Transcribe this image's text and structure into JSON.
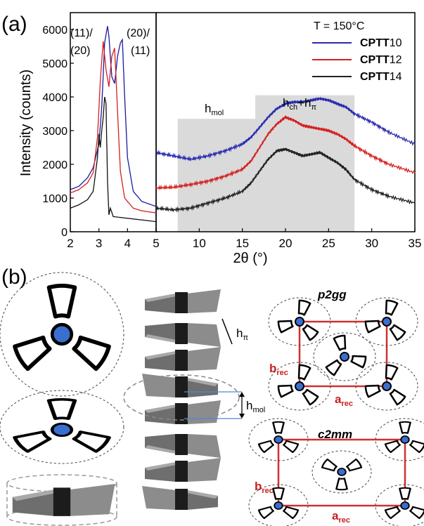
{
  "figure": {
    "panel_a_label": "(a)",
    "panel_b_label": "(b)",
    "temperature_label": "T = 150°C",
    "xlabel_main": "2θ (°)",
    "ylabel": "Intensity (counts)",
    "annotations": {
      "peak_left_line1": "(11)/",
      "peak_left_line2": "(20)",
      "peak_right_line1": "(20)/",
      "peak_right_line2": "(11)",
      "hmol_base": "h",
      "hmol_sub": "mol",
      "hch_base": "h",
      "hch_sub": "ch",
      "hch_plus": "+h",
      "hch_pi": "π",
      "hpi_base": "h",
      "hpi_sub": "π",
      "hmol_b_base": "h",
      "hmol_b_sub": "mol"
    },
    "lattice": {
      "p2gg_label": "p2gg",
      "c2mm_label": "c2mm",
      "b_base": "b",
      "b_sub": "rec",
      "a_base": "a",
      "a_sub": "rec"
    }
  },
  "chart_data": [
    {
      "type": "line",
      "title": "",
      "xlabel": "",
      "ylabel": "Intensity (counts)",
      "xlim": [
        2,
        5
      ],
      "ylim": [
        0,
        6500
      ],
      "x_ticks": [
        2,
        3,
        4,
        5
      ],
      "y_ticks": [
        0,
        1000,
        2000,
        3000,
        4000,
        5000,
        6000
      ],
      "series": [
        {
          "name": "CPTT10",
          "color": "#1a1a9e",
          "x": [
            2.0,
            2.3,
            2.6,
            2.8,
            3.0,
            3.1,
            3.2,
            3.3,
            3.35,
            3.45,
            3.55,
            3.65,
            3.75,
            3.82,
            3.9,
            4.0,
            4.2,
            4.5,
            5.0
          ],
          "y": [
            1250,
            1350,
            1600,
            1900,
            2600,
            3700,
            5600,
            6100,
            5800,
            4600,
            4400,
            5200,
            5600,
            5700,
            4000,
            2200,
            1200,
            900,
            750
          ]
        },
        {
          "name": "CPTT12",
          "color": "#d42020",
          "x": [
            2.0,
            2.3,
            2.6,
            2.8,
            2.95,
            3.05,
            3.15,
            3.25,
            3.35,
            3.45,
            3.55,
            3.65,
            3.75,
            3.9,
            4.2,
            4.5,
            5.0
          ],
          "y": [
            1150,
            1250,
            1450,
            1750,
            2800,
            4500,
            5650,
            4800,
            4300,
            5200,
            5450,
            3600,
            1800,
            1000,
            700,
            620,
            560
          ]
        },
        {
          "name": "CPTT14",
          "color": "#111111",
          "x": [
            2.0,
            2.3,
            2.6,
            2.8,
            2.95,
            3.0,
            3.05,
            3.1,
            3.15,
            3.2,
            3.25,
            3.3,
            3.35,
            3.4,
            3.5,
            4.0,
            4.5,
            5.0
          ],
          "y": [
            700,
            800,
            950,
            1200,
            2200,
            2900,
            2500,
            3000,
            3400,
            4000,
            3800,
            1500,
            500,
            700,
            450,
            400,
            350,
            300
          ]
        }
      ]
    },
    {
      "type": "line",
      "title": "",
      "xlabel": "2θ (°)",
      "ylabel": "",
      "xlim": [
        5,
        35
      ],
      "ylim": [
        0,
        6500
      ],
      "x_ticks": [
        5,
        10,
        15,
        20,
        25,
        30,
        35
      ],
      "shaded_regions": [
        {
          "label": "hmol",
          "x": [
            7.5,
            16.5
          ],
          "y_top": 3350
        },
        {
          "label": "hch+hπ",
          "x": [
            16.5,
            28
          ],
          "y_top": 4050
        }
      ],
      "series": [
        {
          "name": "CPTT10",
          "color": "#2a2ab0",
          "x": [
            5,
            7,
            9,
            11,
            13,
            15,
            16,
            17,
            18,
            19,
            20,
            21,
            22,
            23,
            24,
            25,
            26,
            27,
            28,
            30,
            32,
            35
          ],
          "y": [
            2350,
            2250,
            2150,
            2250,
            2400,
            2600,
            2800,
            3100,
            3400,
            3650,
            3800,
            3850,
            3850,
            3900,
            3950,
            3900,
            3800,
            3700,
            3500,
            3250,
            2950,
            2600
          ]
        },
        {
          "name": "CPTT12",
          "color": "#d42020",
          "x": [
            5,
            7,
            9,
            11,
            13,
            15,
            16,
            17,
            18,
            19,
            20,
            21,
            22,
            23,
            24,
            25,
            26,
            27,
            28,
            30,
            32,
            35
          ],
          "y": [
            1300,
            1320,
            1400,
            1500,
            1650,
            1850,
            2100,
            2500,
            2900,
            3200,
            3400,
            3300,
            3150,
            3100,
            3050,
            3000,
            2900,
            2750,
            2550,
            2250,
            2000,
            1750
          ]
        },
        {
          "name": "CPTT14",
          "color": "#222222",
          "x": [
            5,
            7,
            9,
            11,
            13,
            15,
            16,
            17,
            18,
            19,
            20,
            21,
            22,
            23,
            24,
            25,
            26,
            27,
            28,
            30,
            32,
            35
          ],
          "y": [
            700,
            650,
            700,
            850,
            1000,
            1200,
            1450,
            1800,
            2150,
            2400,
            2450,
            2350,
            2250,
            2300,
            2350,
            2200,
            2050,
            1850,
            1550,
            1250,
            1050,
            850
          ]
        }
      ]
    }
  ]
}
